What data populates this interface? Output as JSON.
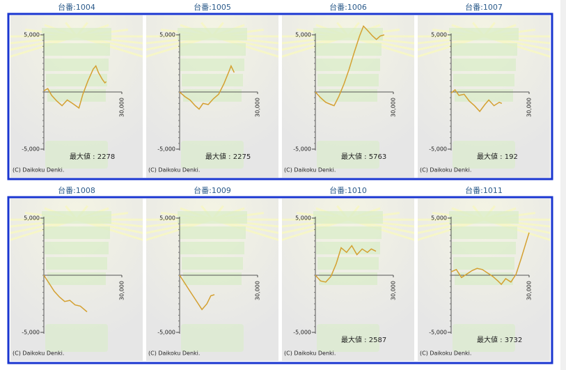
{
  "chart_data": [
    {
      "type": "line",
      "title": "台番:1004",
      "annotation": "最大値 : 2278",
      "copyright": "(C) Daikoku Denki.",
      "color": "#d4a030",
      "x": [
        0,
        1500,
        3000,
        5000,
        7000,
        9000,
        11000,
        13500,
        15000,
        17000,
        19000,
        20000,
        21000,
        22500,
        23500,
        24000
      ],
      "values": [
        100,
        300,
        -300,
        -800,
        -1200,
        -700,
        -1000,
        -1400,
        -200,
        1000,
        2000,
        2278,
        1700,
        1100,
        800,
        900
      ],
      "xlim": [
        0,
        30000
      ],
      "xticks": [
        {
          "value": 30000,
          "label": "30,000"
        }
      ],
      "ylim": [
        -5000,
        5000
      ],
      "yticks": [
        {
          "value": 5000,
          "label": "5,000"
        },
        {
          "value": -5000,
          "label": "-5,000"
        }
      ]
    },
    {
      "type": "line",
      "title": "台番:1005",
      "annotation": "最大値 : 2275",
      "copyright": "(C) Daikoku Denki.",
      "color": "#d4a030",
      "x": [
        0,
        2000,
        4000,
        6000,
        7500,
        9000,
        11000,
        13000,
        15000,
        17000,
        19000,
        19800,
        21000
      ],
      "values": [
        0,
        -400,
        -700,
        -1200,
        -1500,
        -1000,
        -1100,
        -600,
        -200,
        700,
        1800,
        2275,
        1700
      ],
      "xlim": [
        0,
        30000
      ],
      "xticks": [
        {
          "value": 30000,
          "label": "30,000"
        }
      ],
      "ylim": [
        -5000,
        5000
      ],
      "yticks": [
        {
          "value": 5000,
          "label": "5,000"
        },
        {
          "value": -5000,
          "label": "-5,000"
        }
      ]
    },
    {
      "type": "line",
      "title": "台番:1006",
      "annotation": "最大値 : 5763",
      "copyright": "(C) Daikoku Denki.",
      "color": "#d4a030",
      "x": [
        0,
        2000,
        4000,
        6000,
        7200,
        9000,
        11000,
        13000,
        15000,
        17000,
        18500,
        20000,
        22000,
        23500,
        25000,
        26500
      ],
      "values": [
        0,
        -500,
        -900,
        -1100,
        -1200,
        -400,
        700,
        2000,
        3500,
        4900,
        5763,
        5400,
        4900,
        4600,
        4900,
        5000
      ],
      "xlim": [
        0,
        30000
      ],
      "xticks": [
        {
          "value": 30000,
          "label": "30,000"
        }
      ],
      "ylim": [
        -5000,
        5000
      ],
      "yticks": [
        {
          "value": 5000,
          "label": "5,000"
        },
        {
          "value": -5000,
          "label": "-5,000"
        }
      ]
    },
    {
      "type": "line",
      "title": "台番:1007",
      "annotation": "最大値 : 192",
      "copyright": "(C) Daikoku Denki.",
      "color": "#d4a030",
      "x": [
        0,
        1500,
        3000,
        5000,
        7000,
        9000,
        11000,
        13000,
        14500,
        16500,
        18500,
        19500
      ],
      "values": [
        -100,
        192,
        -300,
        -200,
        -800,
        -1200,
        -1700,
        -1100,
        -700,
        -1200,
        -900,
        -1000
      ],
      "xlim": [
        0,
        30000
      ],
      "xticks": [
        {
          "value": 30000,
          "label": "30,000"
        }
      ],
      "ylim": [
        -5000,
        5000
      ],
      "yticks": [
        {
          "value": 5000,
          "label": "5,000"
        },
        {
          "value": -5000,
          "label": "-5,000"
        }
      ]
    },
    {
      "type": "line",
      "title": "台番:1008",
      "copyright": "(C) Daikoku Denki.",
      "color": "#d4a030",
      "x": [
        0,
        2000,
        4000,
        6000,
        8000,
        10000,
        12000,
        14000,
        16600
      ],
      "values": [
        0,
        -700,
        -1400,
        -1900,
        -2300,
        -2200,
        -2600,
        -2700,
        -3200
      ],
      "xlim": [
        0,
        30000
      ],
      "xticks": [
        {
          "value": 30000,
          "label": "30,000"
        }
      ],
      "ylim": [
        -5000,
        5000
      ],
      "yticks": [
        {
          "value": 5000,
          "label": "5,000"
        },
        {
          "value": -5000,
          "label": "-5,000"
        }
      ]
    },
    {
      "type": "line",
      "title": "台番:1009",
      "copyright": "(C) Daikoku Denki.",
      "color": "#d4a030",
      "x": [
        0,
        2000,
        4000,
        6000,
        8600,
        10500,
        12000,
        13400
      ],
      "values": [
        0,
        -700,
        -1400,
        -2100,
        -3000,
        -2500,
        -1800,
        -1700
      ],
      "xlim": [
        0,
        30000
      ],
      "xticks": [
        {
          "value": 30000,
          "label": "30,000"
        }
      ],
      "ylim": [
        -5000,
        5000
      ],
      "yticks": [
        {
          "value": 5000,
          "label": "5,000"
        },
        {
          "value": -5000,
          "label": "-5,000"
        }
      ]
    },
    {
      "type": "line",
      "title": "台番:1010",
      "annotation": "最大値 : 2587",
      "copyright": "(C) Daikoku Denki.",
      "color": "#d4a030",
      "x": [
        0,
        2000,
        4000,
        6000,
        8000,
        9900,
        12000,
        14000,
        16000,
        18000,
        20000,
        21500,
        23300
      ],
      "values": [
        0,
        -500,
        -600,
        -100,
        1000,
        2400,
        2000,
        2587,
        1800,
        2300,
        2000,
        2300,
        2100
      ],
      "xlim": [
        0,
        30000
      ],
      "xticks": [
        {
          "value": 30000,
          "label": "30,000"
        }
      ],
      "ylim": [
        -5000,
        5000
      ],
      "yticks": [
        {
          "value": 5000,
          "label": "5,000"
        },
        {
          "value": -5000,
          "label": "-5,000"
        }
      ]
    },
    {
      "type": "line",
      "title": "台番:1011",
      "annotation": "最大値 : 3732",
      "copyright": "(C) Daikoku Denki.",
      "color": "#d4a030",
      "x": [
        0,
        2000,
        4000,
        6000,
        8000,
        10000,
        12000,
        14000,
        16000,
        18000,
        19300,
        21000,
        23000,
        25000,
        27000,
        29000,
        30000
      ],
      "values": [
        300,
        500,
        -200,
        100,
        400,
        600,
        500,
        200,
        -100,
        -500,
        -800,
        -300,
        -600,
        100,
        1500,
        3000,
        3732
      ],
      "xlim": [
        0,
        30000
      ],
      "xticks": [
        {
          "value": 30000,
          "label": "30,000"
        }
      ],
      "ylim": [
        -5000,
        5000
      ],
      "yticks": [
        {
          "value": 5000,
          "label": "5,000"
        },
        {
          "value": -5000,
          "label": "-5,000"
        }
      ]
    }
  ]
}
